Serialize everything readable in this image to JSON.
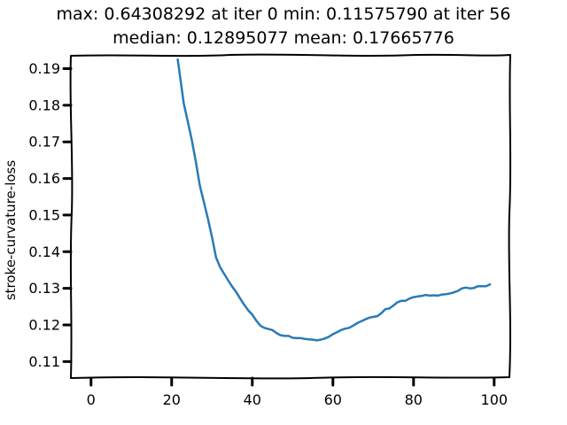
{
  "chart_data": {
    "type": "line",
    "title_line1": "max: 0.64308292 at iter 0 min: 0.11575790 at iter 56",
    "title_line2": "median: 0.12895077 mean: 0.17665776",
    "xlabel": "",
    "ylabel": "stroke-curvature-loss",
    "xlim": [
      -5,
      104
    ],
    "ylim": [
      0.1055,
      0.1935
    ],
    "x_ticks": [
      0,
      20,
      40,
      60,
      80,
      100
    ],
    "y_ticks": [
      0.11,
      0.12,
      0.13,
      0.14,
      0.15,
      0.16,
      0.17,
      0.18,
      0.19
    ],
    "series": [
      {
        "color": "#2a7ab5",
        "x": [
          21.5,
          22,
          23,
          24,
          25,
          26,
          27,
          28,
          29,
          30,
          31,
          32,
          33,
          34,
          35,
          36,
          37,
          38,
          39,
          40,
          41,
          42,
          43,
          44,
          45,
          46,
          47,
          48,
          49,
          50,
          51,
          52,
          53,
          54,
          55,
          56,
          57,
          58,
          59,
          60,
          61,
          62,
          63,
          64,
          65,
          66,
          67,
          68,
          69,
          70,
          71,
          72,
          73,
          74,
          75,
          76,
          77,
          78,
          79,
          80,
          81,
          82,
          83,
          84,
          85,
          86,
          87,
          88,
          89,
          90,
          91,
          92,
          93,
          94,
          95,
          96,
          97,
          98,
          99
        ],
        "y": [
          0.1925,
          0.1885,
          0.1805,
          0.1755,
          0.1705,
          0.1645,
          0.158,
          0.1535,
          0.149,
          0.144,
          0.1385,
          0.1358,
          0.134,
          0.1322,
          0.1305,
          0.129,
          0.1272,
          0.1255,
          0.124,
          0.1228,
          0.1212,
          0.1198,
          0.1192,
          0.1189,
          0.1186,
          0.1178,
          0.1172,
          0.117,
          0.117,
          0.1165,
          0.1164,
          0.1164,
          0.1162,
          0.1161,
          0.116,
          0.1158,
          0.116,
          0.1163,
          0.1168,
          0.1175,
          0.118,
          0.1186,
          0.119,
          0.1192,
          0.1198,
          0.1205,
          0.121,
          0.1215,
          0.122,
          0.1222,
          0.1224,
          0.1232,
          0.1243,
          0.1245,
          0.1253,
          0.1262,
          0.1266,
          0.1266,
          0.1272,
          0.1276,
          0.1278,
          0.1279,
          0.1282,
          0.128,
          0.1281,
          0.128,
          0.1283,
          0.1284,
          0.1286,
          0.1289,
          0.1293,
          0.13,
          0.1302,
          0.13,
          0.1301,
          0.1306,
          0.1306,
          0.1306,
          0.1311
        ]
      }
    ],
    "grid": false,
    "style": "xkcd"
  }
}
